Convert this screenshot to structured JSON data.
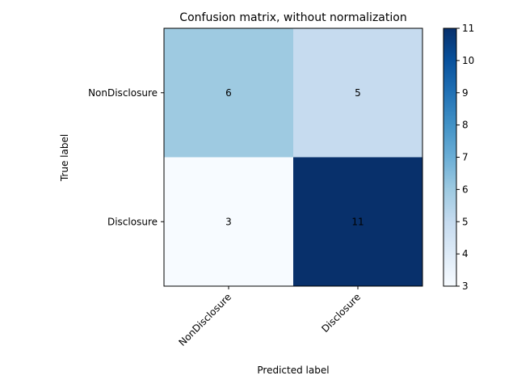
{
  "chart_data": {
    "type": "heatmap",
    "title": "Confusion matrix, without normalization",
    "xlabel": "Predicted label",
    "ylabel": "True label",
    "x_categories": [
      "NonDisclosure",
      "Disclosure"
    ],
    "y_categories": [
      "NonDisclosure",
      "Disclosure"
    ],
    "values": [
      [
        6,
        5
      ],
      [
        3,
        11
      ]
    ],
    "colormap": "Blues",
    "colorbar": {
      "min": 3,
      "max": 11,
      "ticks": [
        "3",
        "4",
        "5",
        "6",
        "7",
        "8",
        "9",
        "10",
        "11"
      ]
    },
    "grid": false
  }
}
